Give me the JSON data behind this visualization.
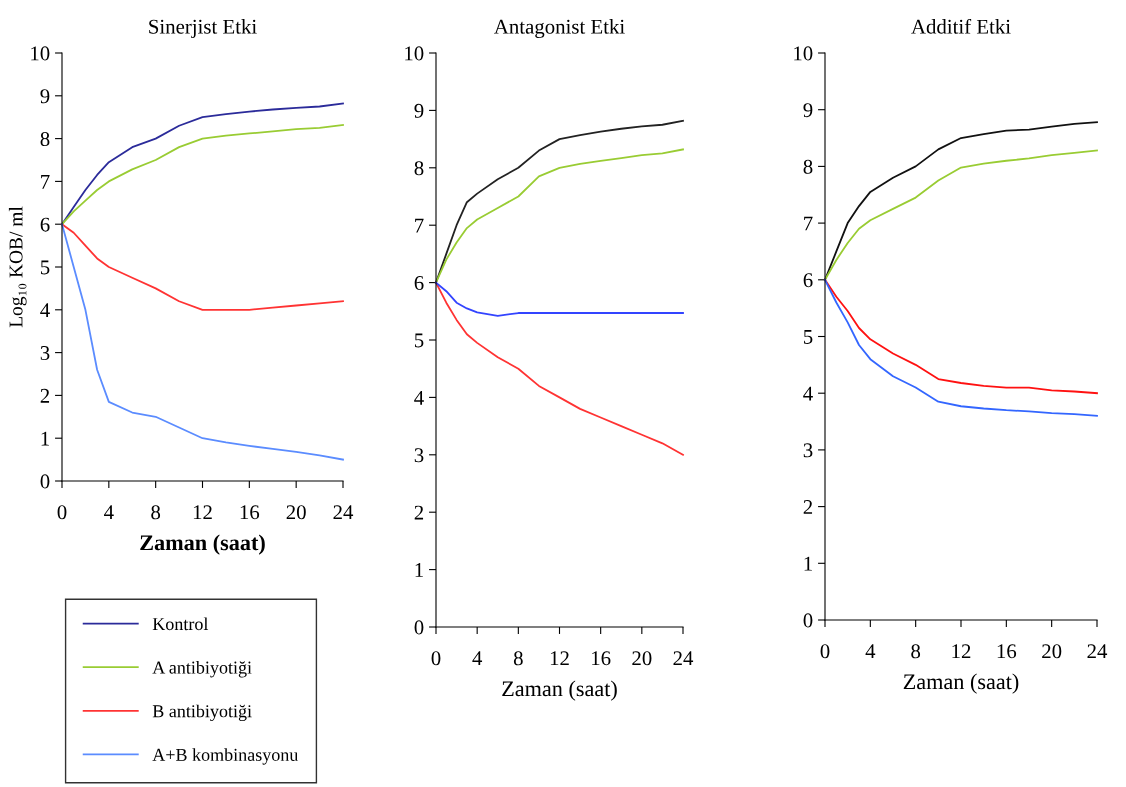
{
  "chart_data": [
    {
      "type": "line",
      "title": "Sinerjist Etki",
      "xlabel": "Zaman (saat)",
      "ylabel": "Log₁₀ KOB/ ml",
      "x": [
        0,
        1,
        2,
        3,
        4,
        6,
        8,
        10,
        12,
        14,
        16,
        18,
        20,
        22,
        24
      ],
      "xlim": [
        0,
        24
      ],
      "xticks": [
        0,
        4,
        8,
        12,
        16,
        20,
        24
      ],
      "ylim": [
        0,
        10
      ],
      "yticks": [
        0,
        1,
        2,
        3,
        4,
        5,
        6,
        7,
        8,
        9,
        10
      ],
      "grid": false,
      "legend": "bottom",
      "marker": "none",
      "line_style": "solid",
      "series": [
        {
          "name": "Kontrol",
          "color": "#2b2b9a",
          "values": [
            6,
            6.4,
            6.8,
            7.15,
            7.45,
            7.8,
            8.0,
            8.3,
            8.5,
            8.57,
            8.63,
            8.68,
            8.72,
            8.75,
            8.82
          ]
        },
        {
          "name": "A antibiyotiği",
          "color": "#99cc33",
          "values": [
            6,
            6.3,
            6.55,
            6.8,
            7.0,
            7.28,
            7.5,
            7.8,
            8.0,
            8.07,
            8.12,
            8.17,
            8.22,
            8.25,
            8.32
          ]
        },
        {
          "name": "B antibiyotiği",
          "color": "#ff3333",
          "values": [
            6,
            5.8,
            5.5,
            5.2,
            5.0,
            4.75,
            4.5,
            4.2,
            4.0,
            4.0,
            4.0,
            4.05,
            4.1,
            4.15,
            4.2
          ]
        },
        {
          "name": "A+B kombinasyonu",
          "color": "#5b8cff",
          "values": [
            6,
            5.0,
            4.0,
            2.6,
            1.85,
            1.6,
            1.5,
            1.25,
            1.0,
            0.9,
            0.82,
            0.75,
            0.68,
            0.6,
            0.5
          ]
        }
      ]
    },
    {
      "type": "line",
      "title": "Antagonist Etki",
      "xlabel": "Zaman (saat)",
      "x": [
        0,
        1,
        2,
        3,
        4,
        6,
        8,
        10,
        12,
        14,
        16,
        18,
        20,
        22,
        24
      ],
      "xlim": [
        0,
        24
      ],
      "xticks": [
        0,
        4,
        8,
        12,
        16,
        20,
        24
      ],
      "ylim": [
        0,
        10
      ],
      "yticks": [
        0,
        1,
        2,
        3,
        4,
        5,
        6,
        7,
        8,
        9,
        10
      ],
      "grid": false,
      "marker": "none",
      "line_style": "solid",
      "series": [
        {
          "color": "#222222",
          "values": [
            6,
            6.5,
            7.0,
            7.4,
            7.55,
            7.8,
            8.0,
            8.3,
            8.5,
            8.57,
            8.63,
            8.68,
            8.72,
            8.75,
            8.82
          ]
        },
        {
          "color": "#99cc33",
          "values": [
            6,
            6.4,
            6.7,
            6.95,
            7.1,
            7.3,
            7.5,
            7.85,
            8.0,
            8.07,
            8.12,
            8.17,
            8.22,
            8.25,
            8.32
          ]
        },
        {
          "color": "#ff3333",
          "values": [
            6,
            5.65,
            5.35,
            5.1,
            4.95,
            4.7,
            4.5,
            4.2,
            4.0,
            3.8,
            3.65,
            3.5,
            3.35,
            3.2,
            3.0
          ]
        },
        {
          "color": "#3344ff",
          "values": [
            6,
            5.85,
            5.65,
            5.55,
            5.48,
            5.42,
            5.47,
            5.47,
            5.47,
            5.47,
            5.47,
            5.47,
            5.47,
            5.47,
            5.47
          ]
        }
      ]
    },
    {
      "type": "line",
      "title": "Additif Etki",
      "xlabel": "Zaman (saat)",
      "x": [
        0,
        1,
        2,
        3,
        4,
        6,
        8,
        10,
        12,
        14,
        16,
        18,
        20,
        22,
        24
      ],
      "xlim": [
        0,
        24
      ],
      "xticks": [
        0,
        4,
        8,
        12,
        16,
        20,
        24
      ],
      "ylim": [
        0,
        10
      ],
      "yticks": [
        0,
        1,
        2,
        3,
        4,
        5,
        6,
        7,
        8,
        9,
        10
      ],
      "grid": false,
      "marker": "none",
      "line_style": "solid",
      "series": [
        {
          "color": "#111111",
          "values": [
            6,
            6.5,
            7.0,
            7.3,
            7.55,
            7.8,
            8.0,
            8.3,
            8.5,
            8.57,
            8.63,
            8.65,
            8.7,
            8.75,
            8.78
          ]
        },
        {
          "color": "#99cc33",
          "values": [
            6,
            6.35,
            6.65,
            6.9,
            7.05,
            7.25,
            7.45,
            7.75,
            7.98,
            8.05,
            8.1,
            8.14,
            8.2,
            8.24,
            8.28
          ]
        },
        {
          "color": "#ff1111",
          "values": [
            6,
            5.7,
            5.45,
            5.15,
            4.95,
            4.7,
            4.5,
            4.25,
            4.18,
            4.13,
            4.1,
            4.1,
            4.05,
            4.03,
            4.0
          ]
        },
        {
          "color": "#3366ff",
          "values": [
            6,
            5.6,
            5.25,
            4.85,
            4.6,
            4.3,
            4.1,
            3.85,
            3.77,
            3.73,
            3.7,
            3.68,
            3.65,
            3.63,
            3.6
          ]
        }
      ]
    }
  ]
}
